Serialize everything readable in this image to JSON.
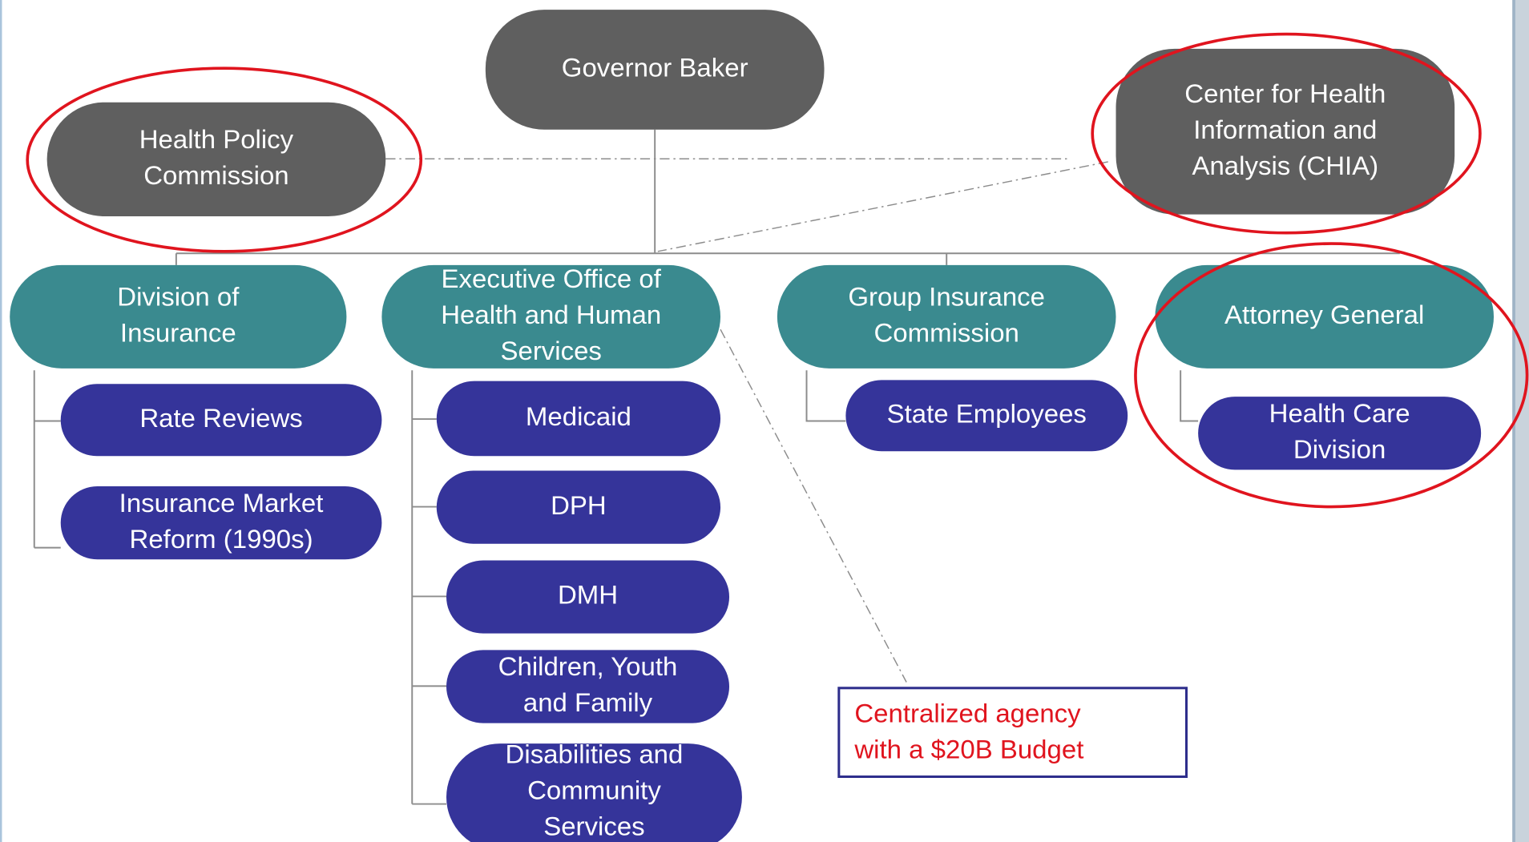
{
  "nodes": [
    {
      "lines": [
        "Governor Baker"
      ]
    },
    {
      "lines": [
        "Health Policy",
        "Commission"
      ]
    },
    {
      "lines": [
        "Center for Health",
        "Information and",
        "Analysis (CHIA)"
      ]
    },
    {
      "lines": [
        "Division of",
        "Insurance"
      ]
    },
    {
      "lines": [
        "Executive Office of",
        "Health and Human",
        "Services"
      ]
    },
    {
      "lines": [
        "Group Insurance",
        "Commission"
      ]
    },
    {
      "lines": [
        "Attorney General"
      ]
    },
    {
      "lines": [
        "Rate Reviews"
      ]
    },
    {
      "lines": [
        "Insurance Market",
        "Reform (1990s)"
      ]
    },
    {
      "lines": [
        "Medicaid"
      ]
    },
    {
      "lines": [
        "DPH"
      ]
    },
    {
      "lines": [
        "DMH"
      ]
    },
    {
      "lines": [
        "Children, Youth",
        "and Family"
      ]
    },
    {
      "lines": [
        "Disabilities and",
        "Community",
        "Services"
      ]
    },
    {
      "lines": [
        "State Employees"
      ]
    },
    {
      "lines": [
        "Health Care",
        "Division"
      ]
    }
  ],
  "callout": {
    "lines": [
      "Centralized agency",
      "with a $20B Budget"
    ]
  }
}
